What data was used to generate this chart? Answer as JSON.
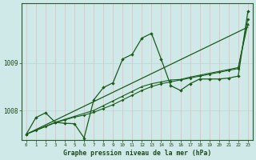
{
  "xlabel": "Graphe pression niveau de la mer (hPa)",
  "background_color": "#cfe8e8",
  "plot_bg_color": "#cfe8e8",
  "grid_color_v": "#e8b8b8",
  "grid_color_h": "#b8d8d8",
  "line_color": "#1a5c1a",
  "xlim": [
    -0.5,
    23.5
  ],
  "ylim": [
    1007.38,
    1010.25
  ],
  "yticks": [
    1008,
    1009
  ],
  "xticks": [
    0,
    1,
    2,
    3,
    4,
    5,
    6,
    7,
    8,
    9,
    10,
    11,
    12,
    13,
    14,
    15,
    16,
    17,
    18,
    19,
    20,
    21,
    22,
    23
  ],
  "line1_x": [
    0,
    1,
    2,
    3,
    4,
    5,
    6,
    7,
    8,
    9,
    10,
    11,
    12,
    13,
    14,
    15,
    16,
    17,
    18,
    19,
    20,
    21,
    22,
    23
  ],
  "line1_y": [
    1007.5,
    1007.85,
    1007.95,
    1007.75,
    1007.73,
    1007.72,
    1007.42,
    1008.22,
    1008.48,
    1008.58,
    1009.08,
    1009.18,
    1009.52,
    1009.62,
    1009.08,
    1008.52,
    1008.42,
    1008.56,
    1008.66,
    1008.66,
    1008.66,
    1008.68,
    1008.72,
    1010.08
  ],
  "line2_x": [
    0,
    1,
    2,
    3,
    4,
    5,
    6,
    7,
    8,
    9,
    10,
    11,
    12,
    13,
    14,
    15,
    16,
    17,
    18,
    19,
    20,
    21,
    22,
    23
  ],
  "line2_y": [
    1007.5,
    1007.58,
    1007.66,
    1007.74,
    1007.8,
    1007.86,
    1007.9,
    1007.96,
    1008.04,
    1008.12,
    1008.22,
    1008.32,
    1008.42,
    1008.5,
    1008.56,
    1008.6,
    1008.64,
    1008.68,
    1008.72,
    1008.76,
    1008.8,
    1008.84,
    1008.88,
    1009.92
  ],
  "line3_x": [
    0,
    3,
    7,
    8,
    9,
    10,
    11,
    12,
    13,
    14,
    15,
    16,
    17,
    18,
    19,
    20,
    21,
    22,
    23
  ],
  "line3_y": [
    1007.5,
    1007.75,
    1008.0,
    1008.1,
    1008.2,
    1008.3,
    1008.4,
    1008.5,
    1008.56,
    1008.6,
    1008.64,
    1008.65,
    1008.7,
    1008.74,
    1008.78,
    1008.82,
    1008.86,
    1008.9,
    1009.82
  ],
  "line4_x": [
    0,
    23
  ],
  "line4_y": [
    1007.5,
    1009.75
  ]
}
